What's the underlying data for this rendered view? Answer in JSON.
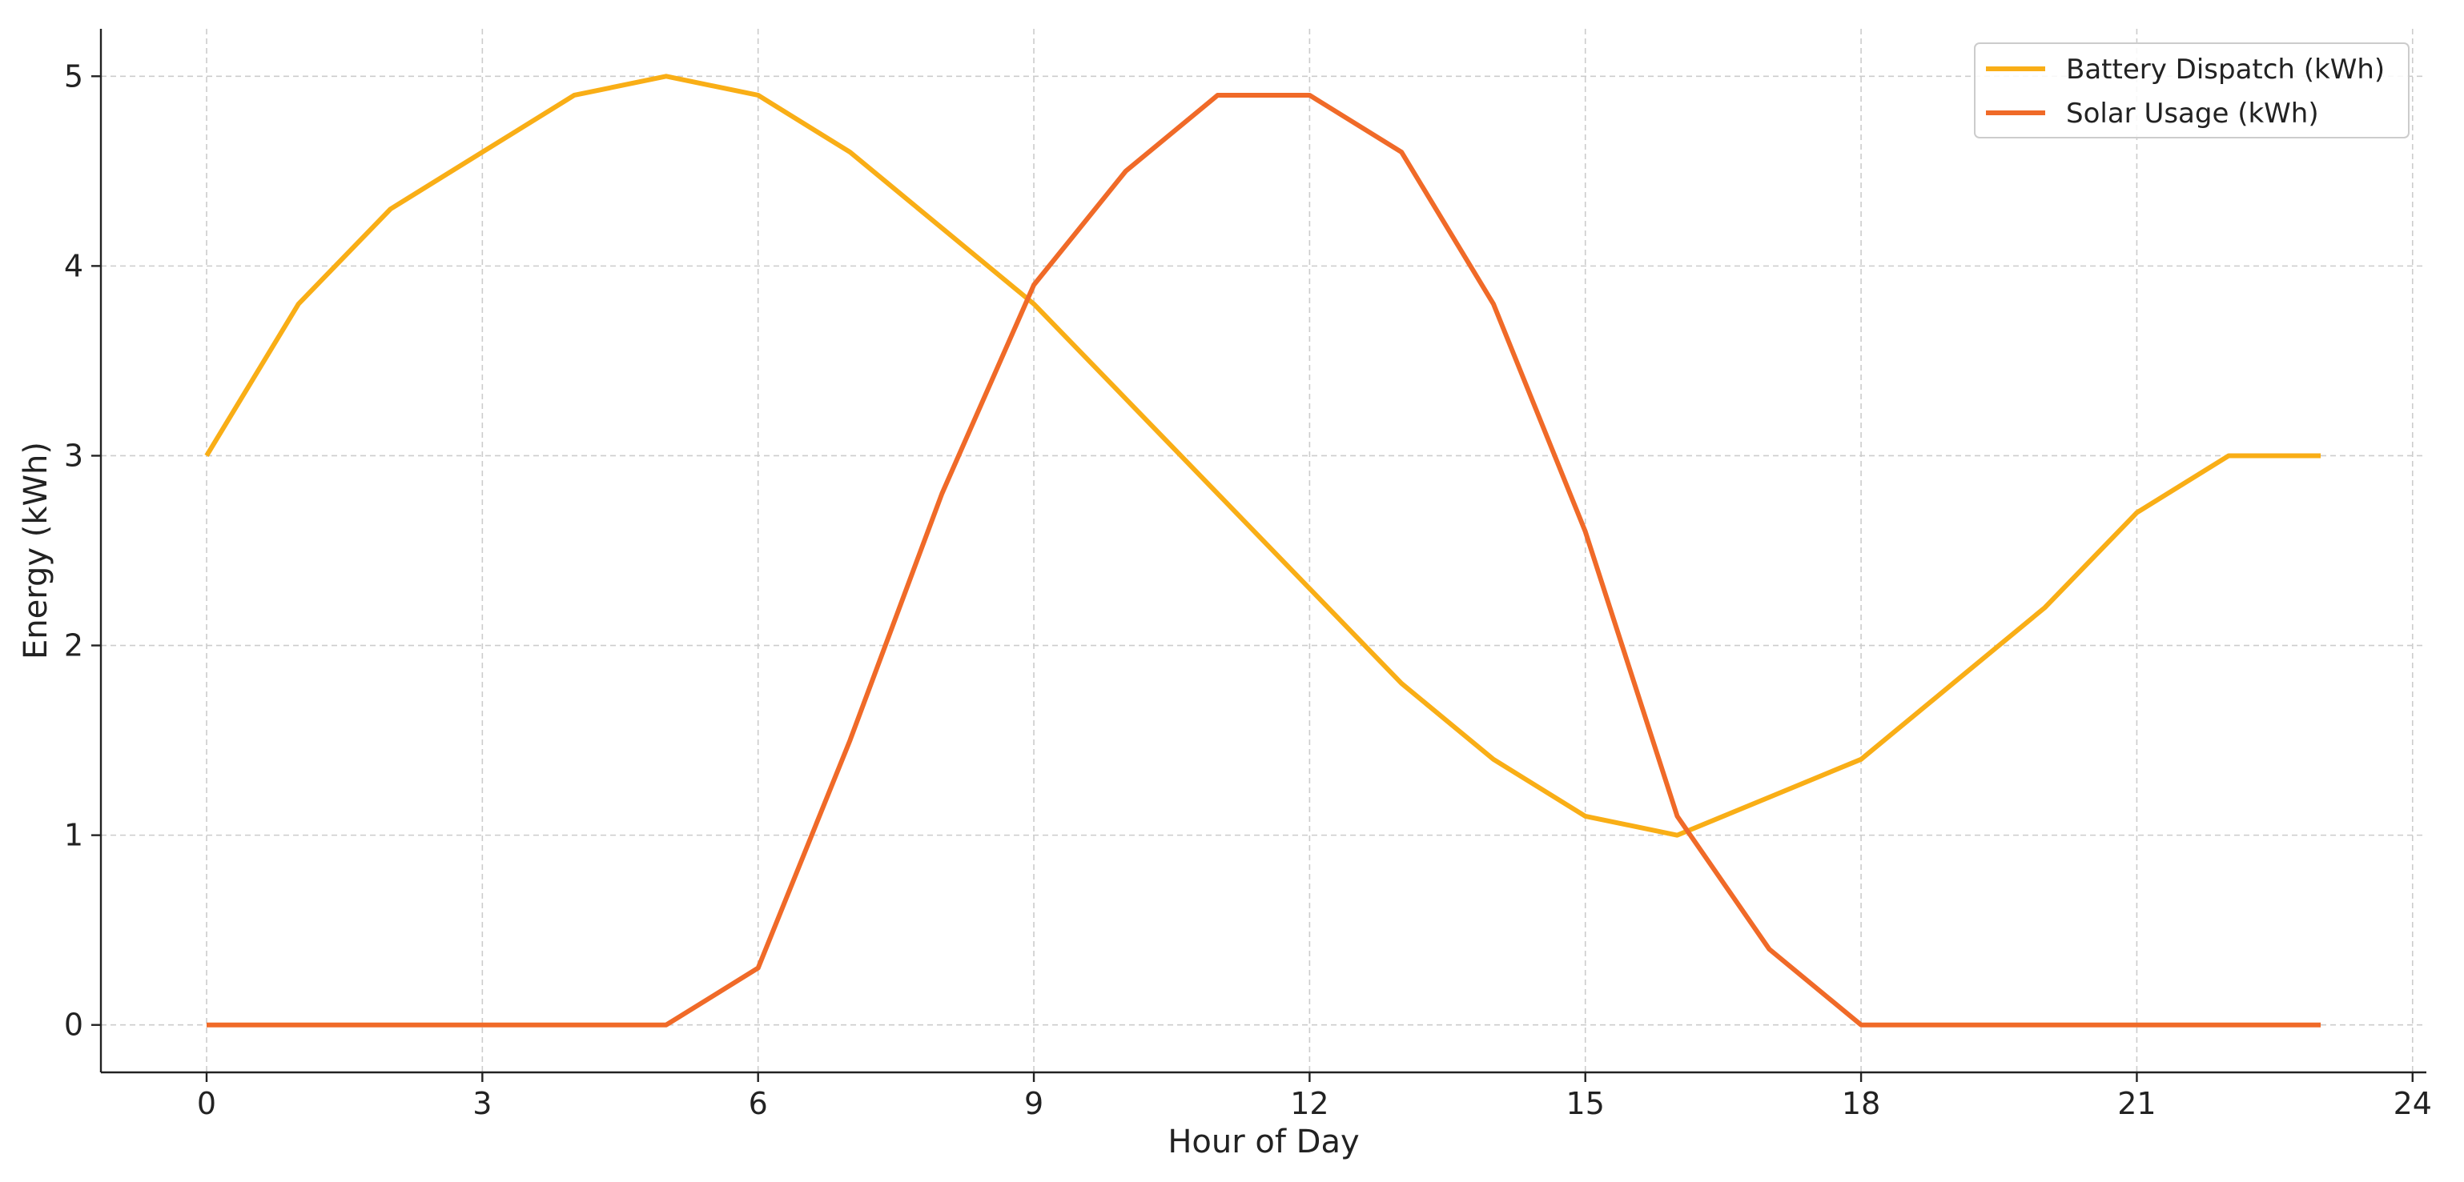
{
  "chart_data": {
    "type": "line",
    "title": "",
    "xlabel": "Hour of Day",
    "ylabel": "Energy (kWh)",
    "x": [
      0,
      1,
      2,
      3,
      4,
      5,
      6,
      7,
      8,
      9,
      10,
      11,
      12,
      13,
      14,
      15,
      16,
      17,
      18,
      19,
      20,
      21,
      22,
      23
    ],
    "xlim": [
      -1.15,
      24.15
    ],
    "ylim": [
      -0.25,
      5.25
    ],
    "xticks": [
      0,
      3,
      6,
      9,
      12,
      15,
      18,
      21,
      24
    ],
    "xtick_labels": [
      "0",
      "3",
      "6",
      "9",
      "12",
      "15",
      "18",
      "21",
      "24"
    ],
    "yticks": [
      0,
      1,
      2,
      3,
      4,
      5
    ],
    "ytick_labels": [
      "0",
      "1",
      "2",
      "3",
      "4",
      "5"
    ],
    "grid": true,
    "legend_position": "top-right",
    "series": [
      {
        "name": "Battery Dispatch (kWh)",
        "color": "#F9AE16",
        "values": [
          3.0,
          3.8,
          4.3,
          4.6,
          4.9,
          5.0,
          4.9,
          4.6,
          4.2,
          3.8,
          3.3,
          2.8,
          2.3,
          1.8,
          1.4,
          1.1,
          1.0,
          1.2,
          1.4,
          1.8,
          2.2,
          2.7,
          3.0,
          3.0
        ]
      },
      {
        "name": "Solar Usage (kWh)",
        "color": "#F06A28",
        "values": [
          0,
          0,
          0,
          0,
          0,
          0,
          0.3,
          1.5,
          2.8,
          3.9,
          4.5,
          4.9,
          4.9,
          4.6,
          3.8,
          2.6,
          1.1,
          0.4,
          0,
          0,
          0,
          0,
          0,
          0
        ]
      }
    ]
  }
}
